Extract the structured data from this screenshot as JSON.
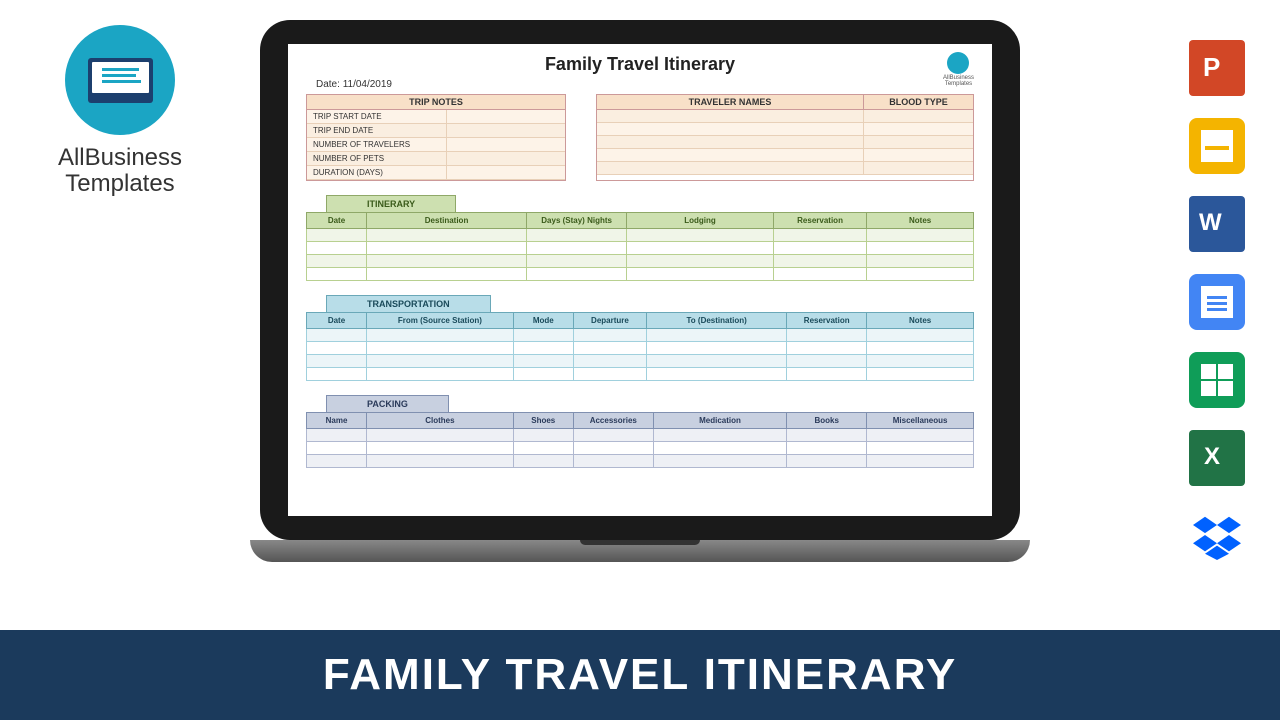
{
  "brand": {
    "name": "AllBusiness",
    "name2": "Templates"
  },
  "banner": "FAMILY TRAVEL ITINERARY",
  "doc": {
    "title": "Family Travel Itinerary",
    "date_label": "Date:",
    "date_value": "11/04/2019",
    "logo_text": "AllBusiness\nTemplates"
  },
  "trip_notes": {
    "header": "TRIP NOTES",
    "rows": [
      "TRIP START DATE",
      "TRIP END DATE",
      "NUMBER OF TRAVELERS",
      "NUMBER OF PETS",
      "DURATION (DAYS)"
    ]
  },
  "traveler": {
    "header": "TRAVELER NAMES",
    "blood": "BLOOD TYPE",
    "row_count": 5
  },
  "itinerary": {
    "tab": "ITINERARY",
    "cols": [
      "Date",
      "Destination",
      "Days (Stay) Nights",
      "Lodging",
      "Reservation",
      "Notes"
    ],
    "widths": [
      "9%",
      "24%",
      "15%",
      "22%",
      "14%",
      "16%"
    ],
    "header_bg": "#cde0b0",
    "border": "#8fa868",
    "row_count": 4
  },
  "transport": {
    "tab": "TRANSPORTATION",
    "cols": [
      "Date",
      "From (Source Station)",
      "Mode",
      "Departure",
      "To (Destination)",
      "Reservation",
      "Notes"
    ],
    "widths": [
      "9%",
      "22%",
      "9%",
      "11%",
      "21%",
      "12%",
      "16%"
    ],
    "header_bg": "#b8dde8",
    "border": "#6aa8b8",
    "row_count": 4
  },
  "packing": {
    "tab": "PACKING",
    "cols": [
      "Name",
      "Clothes",
      "Shoes",
      "Accessories",
      "Medication",
      "Books",
      "Miscellaneous"
    ],
    "widths": [
      "9%",
      "22%",
      "9%",
      "12%",
      "20%",
      "12%",
      "16%"
    ],
    "header_bg": "#c8d0e0",
    "border": "#8090b0",
    "row_count": 3
  },
  "icons": [
    "powerpoint",
    "google-slides",
    "word",
    "google-docs",
    "google-sheets",
    "excel",
    "dropbox"
  ]
}
